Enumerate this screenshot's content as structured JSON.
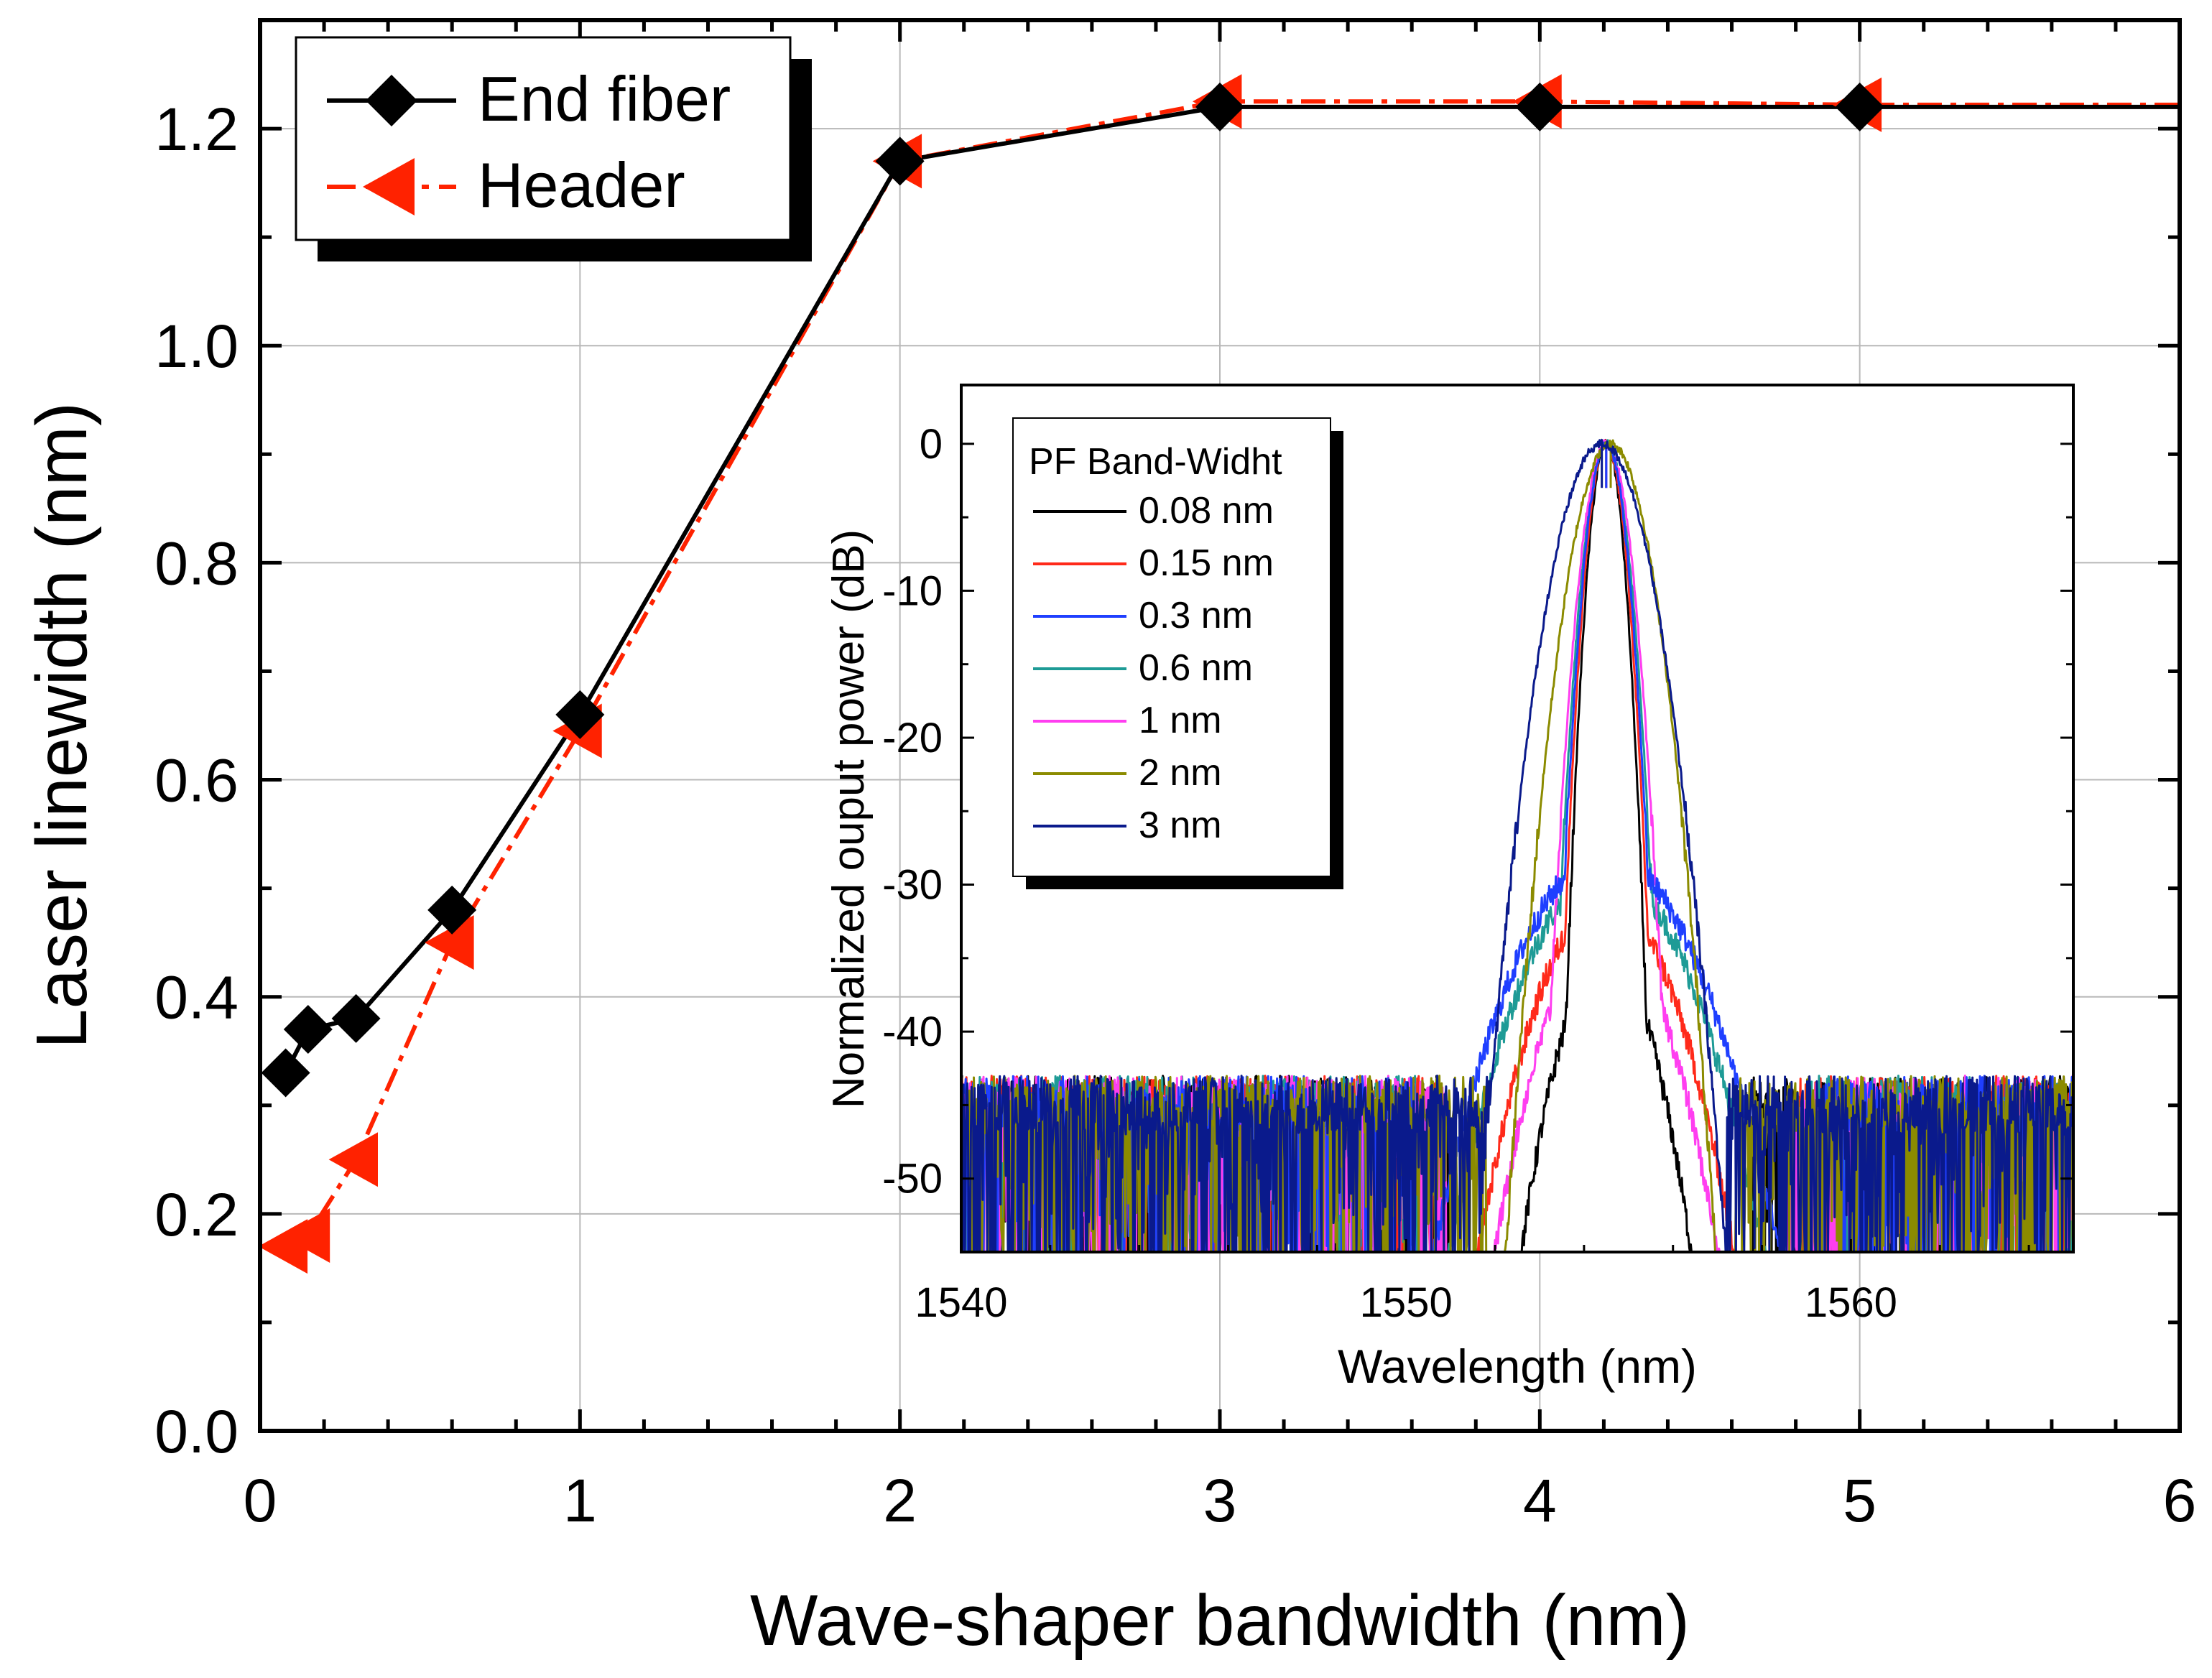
{
  "chart_data": [
    {
      "type": "line",
      "title": "",
      "xlabel": "Wave-shaper bandwidth (nm)",
      "ylabel": "Laser linewidth (nm)",
      "xlim": [
        0,
        6
      ],
      "ylim": [
        0,
        1.3
      ],
      "xticks": [
        "0",
        "1",
        "2",
        "3",
        "4",
        "5",
        "6"
      ],
      "yticks": [
        "0.0",
        "0.2",
        "0.4",
        "0.6",
        "0.8",
        "1.0",
        "1.2"
      ],
      "grid": true,
      "legend_position": "top-left",
      "series": [
        {
          "name": "End fiber",
          "color": "#000000",
          "marker": "diamond",
          "line_style": "solid",
          "x": [
            0.08,
            0.15,
            0.3,
            0.6,
            1,
            2,
            3,
            4,
            5,
            6
          ],
          "y": [
            0.33,
            0.37,
            0.38,
            0.48,
            0.66,
            1.17,
            1.22,
            1.22,
            1.22,
            1.22
          ],
          "markers_x": [
            0.08,
            0.15,
            0.3,
            0.6,
            1,
            2,
            3,
            4,
            5
          ],
          "markers_y": [
            0.33,
            0.37,
            0.38,
            0.48,
            0.66,
            1.17,
            1.22,
            1.22,
            1.22
          ]
        },
        {
          "name": "Header",
          "color": "#ff2200",
          "marker": "left-triangle",
          "line_style": "dash-dot",
          "x": [
            0.08,
            0.15,
            0.3,
            0.6,
            1,
            2,
            3,
            4,
            5,
            6
          ],
          "y": [
            0.17,
            0.18,
            0.25,
            0.45,
            0.645,
            1.17,
            1.225,
            1.225,
            1.222,
            1.222
          ],
          "markers_x": [
            0.08,
            0.15,
            0.3,
            0.6,
            1,
            2,
            3,
            4,
            5
          ],
          "markers_y": [
            0.17,
            0.18,
            0.25,
            0.45,
            0.645,
            1.17,
            1.225,
            1.225,
            1.222
          ]
        }
      ]
    },
    {
      "type": "line",
      "title": "",
      "xlabel": "Wavelength (nm)",
      "ylabel": "Normalized ouput power (dB)",
      "xlim": [
        1540,
        1565
      ],
      "ylim": [
        -55,
        4
      ],
      "xticks": [
        "1540",
        "1550",
        "1560"
      ],
      "yticks": [
        "0",
        "-10",
        "-20",
        "-30",
        "-40",
        "-50"
      ],
      "grid": false,
      "legend_title": "PF Band-Widht",
      "legend_position": "top-left",
      "center_wavelength": 1554.5,
      "noise_floor_db": -45,
      "series": [
        {
          "name": "0.08 nm",
          "color": "#000000",
          "peak_x": 1554.5,
          "half_width_3db": 0.25,
          "shoulder_db": -35,
          "shoulder_width": 1.6,
          "edge_low": 1551.0,
          "edge_high": 1557.8
        },
        {
          "name": "0.15 nm",
          "color": "#ff2a1a",
          "peak_x": 1554.5,
          "half_width_3db": 0.28,
          "shoulder_db": -31,
          "shoulder_width": 2.2,
          "edge_low": 1550.7,
          "edge_high": 1558.8
        },
        {
          "name": "0.3 nm",
          "color": "#1f3fff",
          "peak_x": 1554.5,
          "half_width_3db": 0.3,
          "shoulder_db": -28,
          "shoulder_width": 2.8,
          "edge_low": 1550.2,
          "edge_high": 1559.3
        },
        {
          "name": "0.6 nm",
          "color": "#1e9b96",
          "peak_x": 1554.5,
          "half_width_3db": 0.32,
          "shoulder_db": -29,
          "shoulder_width": 2.6,
          "edge_low": 1550.4,
          "edge_high": 1559.1
        },
        {
          "name": "1 nm",
          "color": "#ff3ef0",
          "peak_x": 1554.5,
          "half_width_3db": 0.35,
          "shoulder_db": -33,
          "shoulder_width": 2.0,
          "edge_low": 1550.9,
          "edge_high": 1558.6
        },
        {
          "name": "2 nm",
          "color": "#8b8b00",
          "peak_x": 1554.6,
          "half_width_3db": 0.55,
          "shoulder_db": -60,
          "shoulder_width": 0.5,
          "edge_low": 1551.8,
          "edge_high": 1557.4
        },
        {
          "name": "3 nm",
          "color": "#0a1a8c",
          "peak_x": 1554.4,
          "half_width_3db": 0.65,
          "shoulder_db": -60,
          "shoulder_width": 0.5,
          "edge_low": 1552.0,
          "edge_high": 1557.2
        }
      ]
    }
  ]
}
